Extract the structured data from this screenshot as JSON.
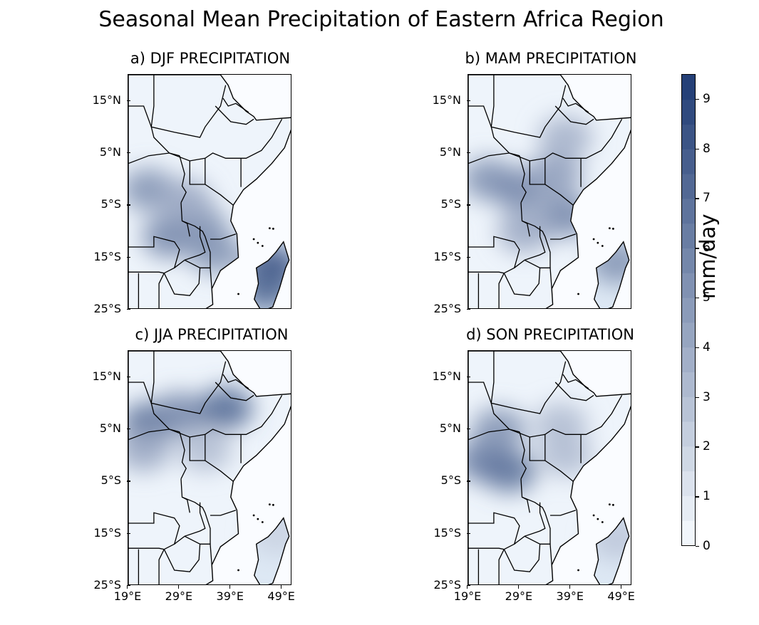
{
  "figure": {
    "title": "Seasonal Mean Precipitation of Eastern Africa Region"
  },
  "panels": [
    {
      "id": "djf",
      "title": "a) DJF PRECIPITATION",
      "season": "DJF",
      "blobs": [
        {
          "lon": 23,
          "lat": -2,
          "intensity": 5
        },
        {
          "lon": 27,
          "lat": -11,
          "intensity": 5.5
        },
        {
          "lon": 33,
          "lat": -9,
          "intensity": 5
        },
        {
          "lon": 36,
          "lat": -14,
          "intensity": 5
        },
        {
          "lon": 30,
          "lat": -4,
          "intensity": 4
        },
        {
          "lon": 47,
          "lat": -17,
          "intensity": 8.5
        },
        {
          "lon": 46,
          "lat": -21,
          "intensity": 7
        }
      ]
    },
    {
      "id": "mam",
      "title": "b) MAM PRECIPITATION",
      "season": "MAM",
      "blobs": [
        {
          "lon": 23,
          "lat": 0,
          "intensity": 5
        },
        {
          "lon": 29,
          "lat": -2,
          "intensity": 5.5
        },
        {
          "lon": 36,
          "lat": 1,
          "intensity": 4.5
        },
        {
          "lon": 38,
          "lat": -7,
          "intensity": 5.5
        },
        {
          "lon": 38,
          "lat": 8,
          "intensity": 3.5
        },
        {
          "lon": 30,
          "lat": -10,
          "intensity": 4
        },
        {
          "lon": 48,
          "lat": -16,
          "intensity": 5
        }
      ]
    },
    {
      "id": "jja",
      "title": "c) JJA PRECIPITATION",
      "season": "JJA",
      "blobs": [
        {
          "lon": 23,
          "lat": 6,
          "intensity": 7
        },
        {
          "lon": 29,
          "lat": 8,
          "intensity": 5.5
        },
        {
          "lon": 38,
          "lat": 9,
          "intensity": 7
        },
        {
          "lon": 22,
          "lat": 1,
          "intensity": 4
        },
        {
          "lon": 34,
          "lat": 1,
          "intensity": 3
        },
        {
          "lon": 48,
          "lat": -15,
          "intensity": 2
        }
      ]
    },
    {
      "id": "son",
      "title": "d) SON PRECIPITATION",
      "season": "SON",
      "blobs": [
        {
          "lon": 22,
          "lat": -1,
          "intensity": 6
        },
        {
          "lon": 27,
          "lat": -3,
          "intensity": 6.5
        },
        {
          "lon": 25,
          "lat": 5,
          "intensity": 5
        },
        {
          "lon": 37,
          "lat": 6,
          "intensity": 3
        },
        {
          "lon": 38,
          "lat": 0,
          "intensity": 3
        },
        {
          "lon": 48,
          "lat": -16,
          "intensity": 2.5
        }
      ]
    }
  ],
  "axes": {
    "lon_range": [
      19,
      51
    ],
    "lat_range": [
      -25,
      20
    ],
    "y_ticks": [
      {
        "lat": 15,
        "label": "15°N"
      },
      {
        "lat": 5,
        "label": "5°N"
      },
      {
        "lat": -5,
        "label": "5°S"
      },
      {
        "lat": -15,
        "label": "15°S"
      },
      {
        "lat": -25,
        "label": "25°S"
      }
    ],
    "x_ticks": [
      {
        "lon": 19,
        "label": "19°E"
      },
      {
        "lon": 29,
        "label": "29°E"
      },
      {
        "lon": 39,
        "label": "39°E"
      },
      {
        "lon": 49,
        "label": "49°E"
      }
    ]
  },
  "colorbar": {
    "label": "mm/day",
    "min": 0,
    "max": 9.5,
    "ticks": [
      "0",
      "1",
      "2",
      "3",
      "4",
      "5",
      "6",
      "7",
      "8",
      "9"
    ],
    "colors": [
      "#f7fbff",
      "#1f3b73"
    ]
  }
}
